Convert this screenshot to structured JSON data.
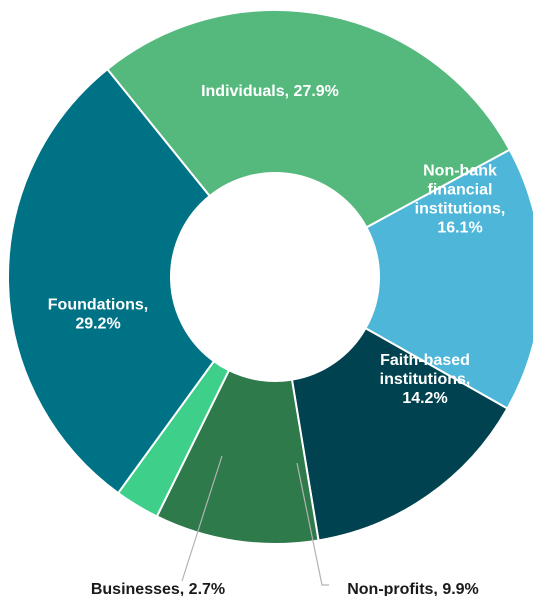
{
  "chart_data": {
    "type": "pie",
    "title": "",
    "donut": true,
    "slices": [
      {
        "label_lines": [
          "Individuals, 27.9%"
        ],
        "value": 27.9,
        "color": "#55b97e"
      },
      {
        "label_lines": [
          "Non-bank",
          "financial",
          "institutions,",
          "16.1%"
        ],
        "value": 16.1,
        "color": "#4db6d9"
      },
      {
        "label_lines": [
          "Faith-based",
          "institutions,",
          "14.2%"
        ],
        "value": 14.2,
        "color": "#00424f"
      },
      {
        "label_lines": [
          "Non-profits, 9.9%"
        ],
        "value": 9.9,
        "color": "#2e7a4b"
      },
      {
        "label_lines": [
          "Businesses, 2.7%"
        ],
        "value": 2.7,
        "color": "#3ecf8a"
      },
      {
        "label_lines": [
          "Foundations,",
          "29.2%"
        ],
        "value": 29.2,
        "color": "#007285"
      }
    ]
  }
}
